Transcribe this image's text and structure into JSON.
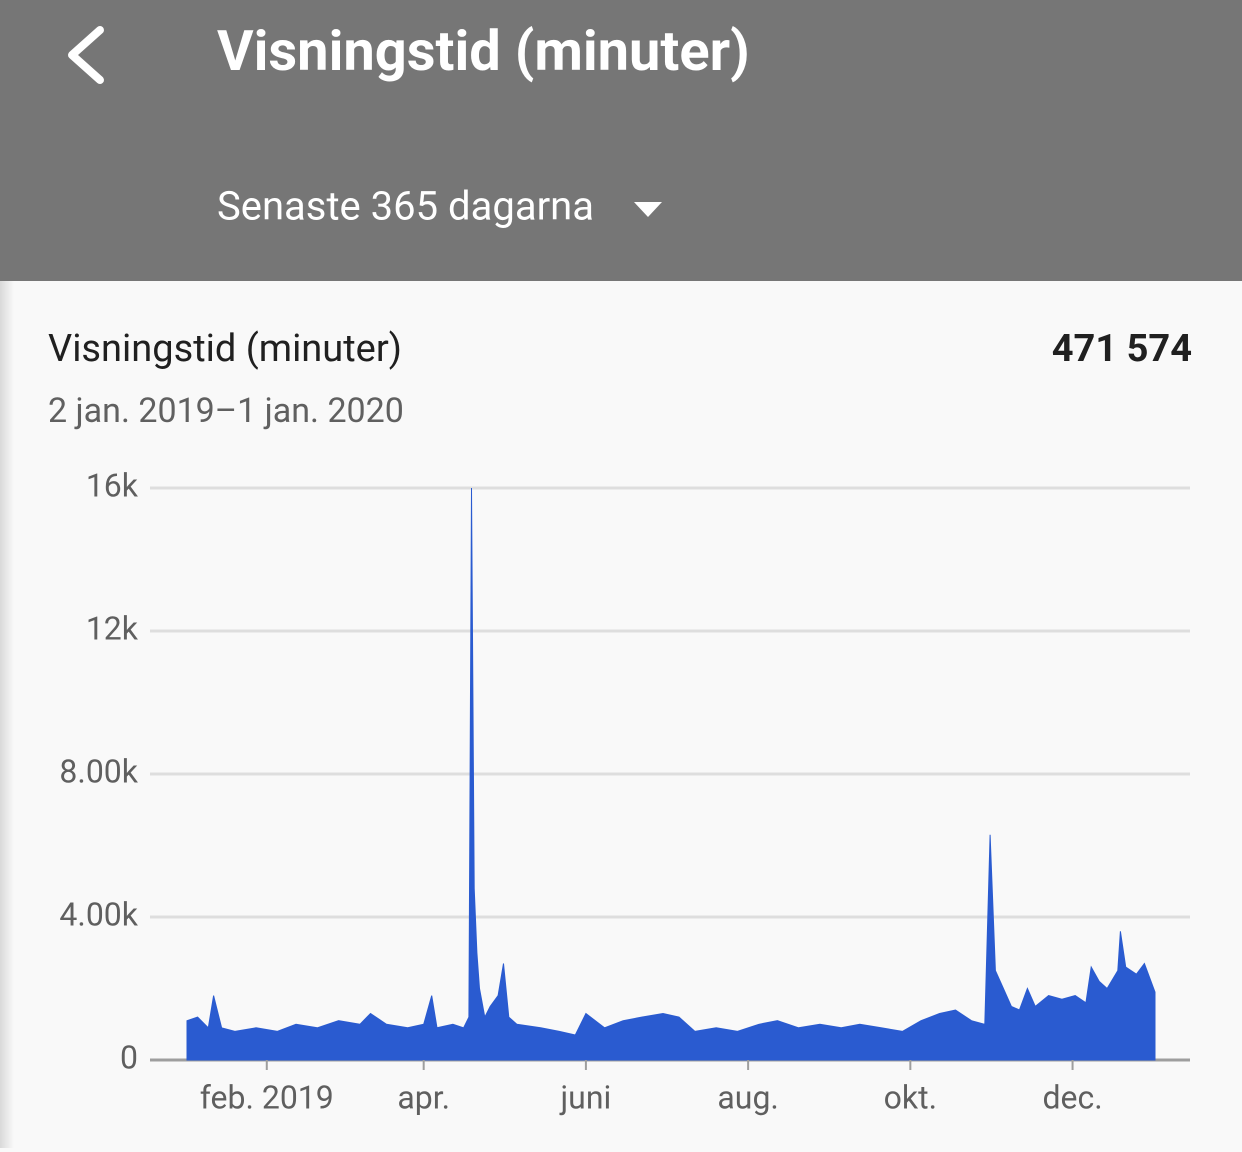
{
  "header": {
    "title": "Visningstid (minuter)",
    "period": "Senaste 365 dagarna"
  },
  "card": {
    "title": "Visningstid (minuter)",
    "total": "471 574",
    "date_range": "2 jan. 2019–1 jan. 2020"
  },
  "chart_data": {
    "type": "area",
    "color": "#2a5bd0",
    "grid": true,
    "x": [
      "2019-01-02",
      "2019-01-06",
      "2019-01-10",
      "2019-01-12",
      "2019-01-15",
      "2019-01-20",
      "2019-01-28",
      "2019-02-05",
      "2019-02-12",
      "2019-02-20",
      "2019-02-28",
      "2019-03-08",
      "2019-03-12",
      "2019-03-18",
      "2019-03-26",
      "2019-04-01",
      "2019-04-04",
      "2019-04-06",
      "2019-04-12",
      "2019-04-16",
      "2019-04-18",
      "2019-04-19",
      "2019-04-20",
      "2019-04-21",
      "2019-04-22",
      "2019-04-24",
      "2019-04-26",
      "2019-04-29",
      "2019-05-01",
      "2019-05-03",
      "2019-05-06",
      "2019-05-15",
      "2019-05-22",
      "2019-05-28",
      "2019-06-01",
      "2019-06-08",
      "2019-06-15",
      "2019-06-22",
      "2019-06-30",
      "2019-07-06",
      "2019-07-12",
      "2019-07-20",
      "2019-07-28",
      "2019-08-05",
      "2019-08-12",
      "2019-08-20",
      "2019-08-28",
      "2019-09-05",
      "2019-09-12",
      "2019-09-20",
      "2019-09-28",
      "2019-10-05",
      "2019-10-12",
      "2019-10-18",
      "2019-10-24",
      "2019-10-29",
      "2019-10-31",
      "2019-11-02",
      "2019-11-05",
      "2019-11-08",
      "2019-11-11",
      "2019-11-14",
      "2019-11-17",
      "2019-11-22",
      "2019-11-27",
      "2019-12-02",
      "2019-12-06",
      "2019-12-08",
      "2019-12-11",
      "2019-12-14",
      "2019-12-18",
      "2019-12-19",
      "2019-12-21",
      "2019-12-25",
      "2019-12-28",
      "2020-01-01"
    ],
    "values": [
      1100,
      1200,
      900,
      1800,
      900,
      800,
      900,
      800,
      1000,
      900,
      1100,
      1000,
      1300,
      1000,
      900,
      1000,
      1800,
      900,
      1000,
      900,
      1200,
      16000,
      4800,
      3000,
      2000,
      1200,
      1500,
      1800,
      2700,
      1200,
      1000,
      900,
      800,
      700,
      1300,
      900,
      1100,
      1200,
      1300,
      1200,
      800,
      900,
      800,
      1000,
      1100,
      900,
      1000,
      900,
      1000,
      900,
      800,
      1100,
      1300,
      1400,
      1100,
      1000,
      6300,
      2500,
      2000,
      1500,
      1400,
      2000,
      1500,
      1800,
      1700,
      1800,
      1600,
      2600,
      2200,
      2000,
      2500,
      3600,
      2600,
      2400,
      2700,
      1900
    ],
    "xlim": [
      "2019-01-02",
      "2020-01-01"
    ],
    "xticks": [
      {
        "value": "2019-02-01",
        "label": "feb. 2019"
      },
      {
        "value": "2019-04-01",
        "label": "apr."
      },
      {
        "value": "2019-06-01",
        "label": "juni"
      },
      {
        "value": "2019-08-01",
        "label": "aug."
      },
      {
        "value": "2019-10-01",
        "label": "okt."
      },
      {
        "value": "2019-12-01",
        "label": "dec."
      }
    ],
    "ylim": [
      0,
      16000
    ],
    "yticks": [
      0,
      {
        "value": 4000,
        "label": "4.00k"
      },
      {
        "value": 8000,
        "label": "8.00k"
      },
      {
        "value": 12000,
        "label": "12k"
      },
      {
        "value": 16000,
        "label": "16k"
      }
    ]
  }
}
